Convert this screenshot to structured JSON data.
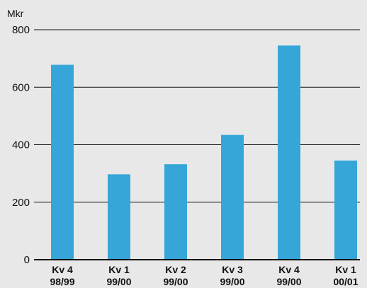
{
  "chart_data": {
    "type": "bar",
    "unit_label": "Mkr",
    "categories": [
      [
        "Kv 4",
        "98/99"
      ],
      [
        "Kv 1",
        "99/00"
      ],
      [
        "Kv 2",
        "99/00"
      ],
      [
        "Kv 3",
        "99/00"
      ],
      [
        "Kv 4",
        "99/00"
      ],
      [
        "Kv 1",
        "00/01"
      ]
    ],
    "values": [
      678,
      297,
      332,
      434,
      745,
      345
    ],
    "ylim": [
      0,
      800
    ],
    "yticks": [
      0,
      200,
      400,
      600,
      800
    ],
    "grid": true,
    "colors": {
      "bar": "#36a6d8",
      "background": "#e8e8e8",
      "grid": "#111111"
    }
  }
}
